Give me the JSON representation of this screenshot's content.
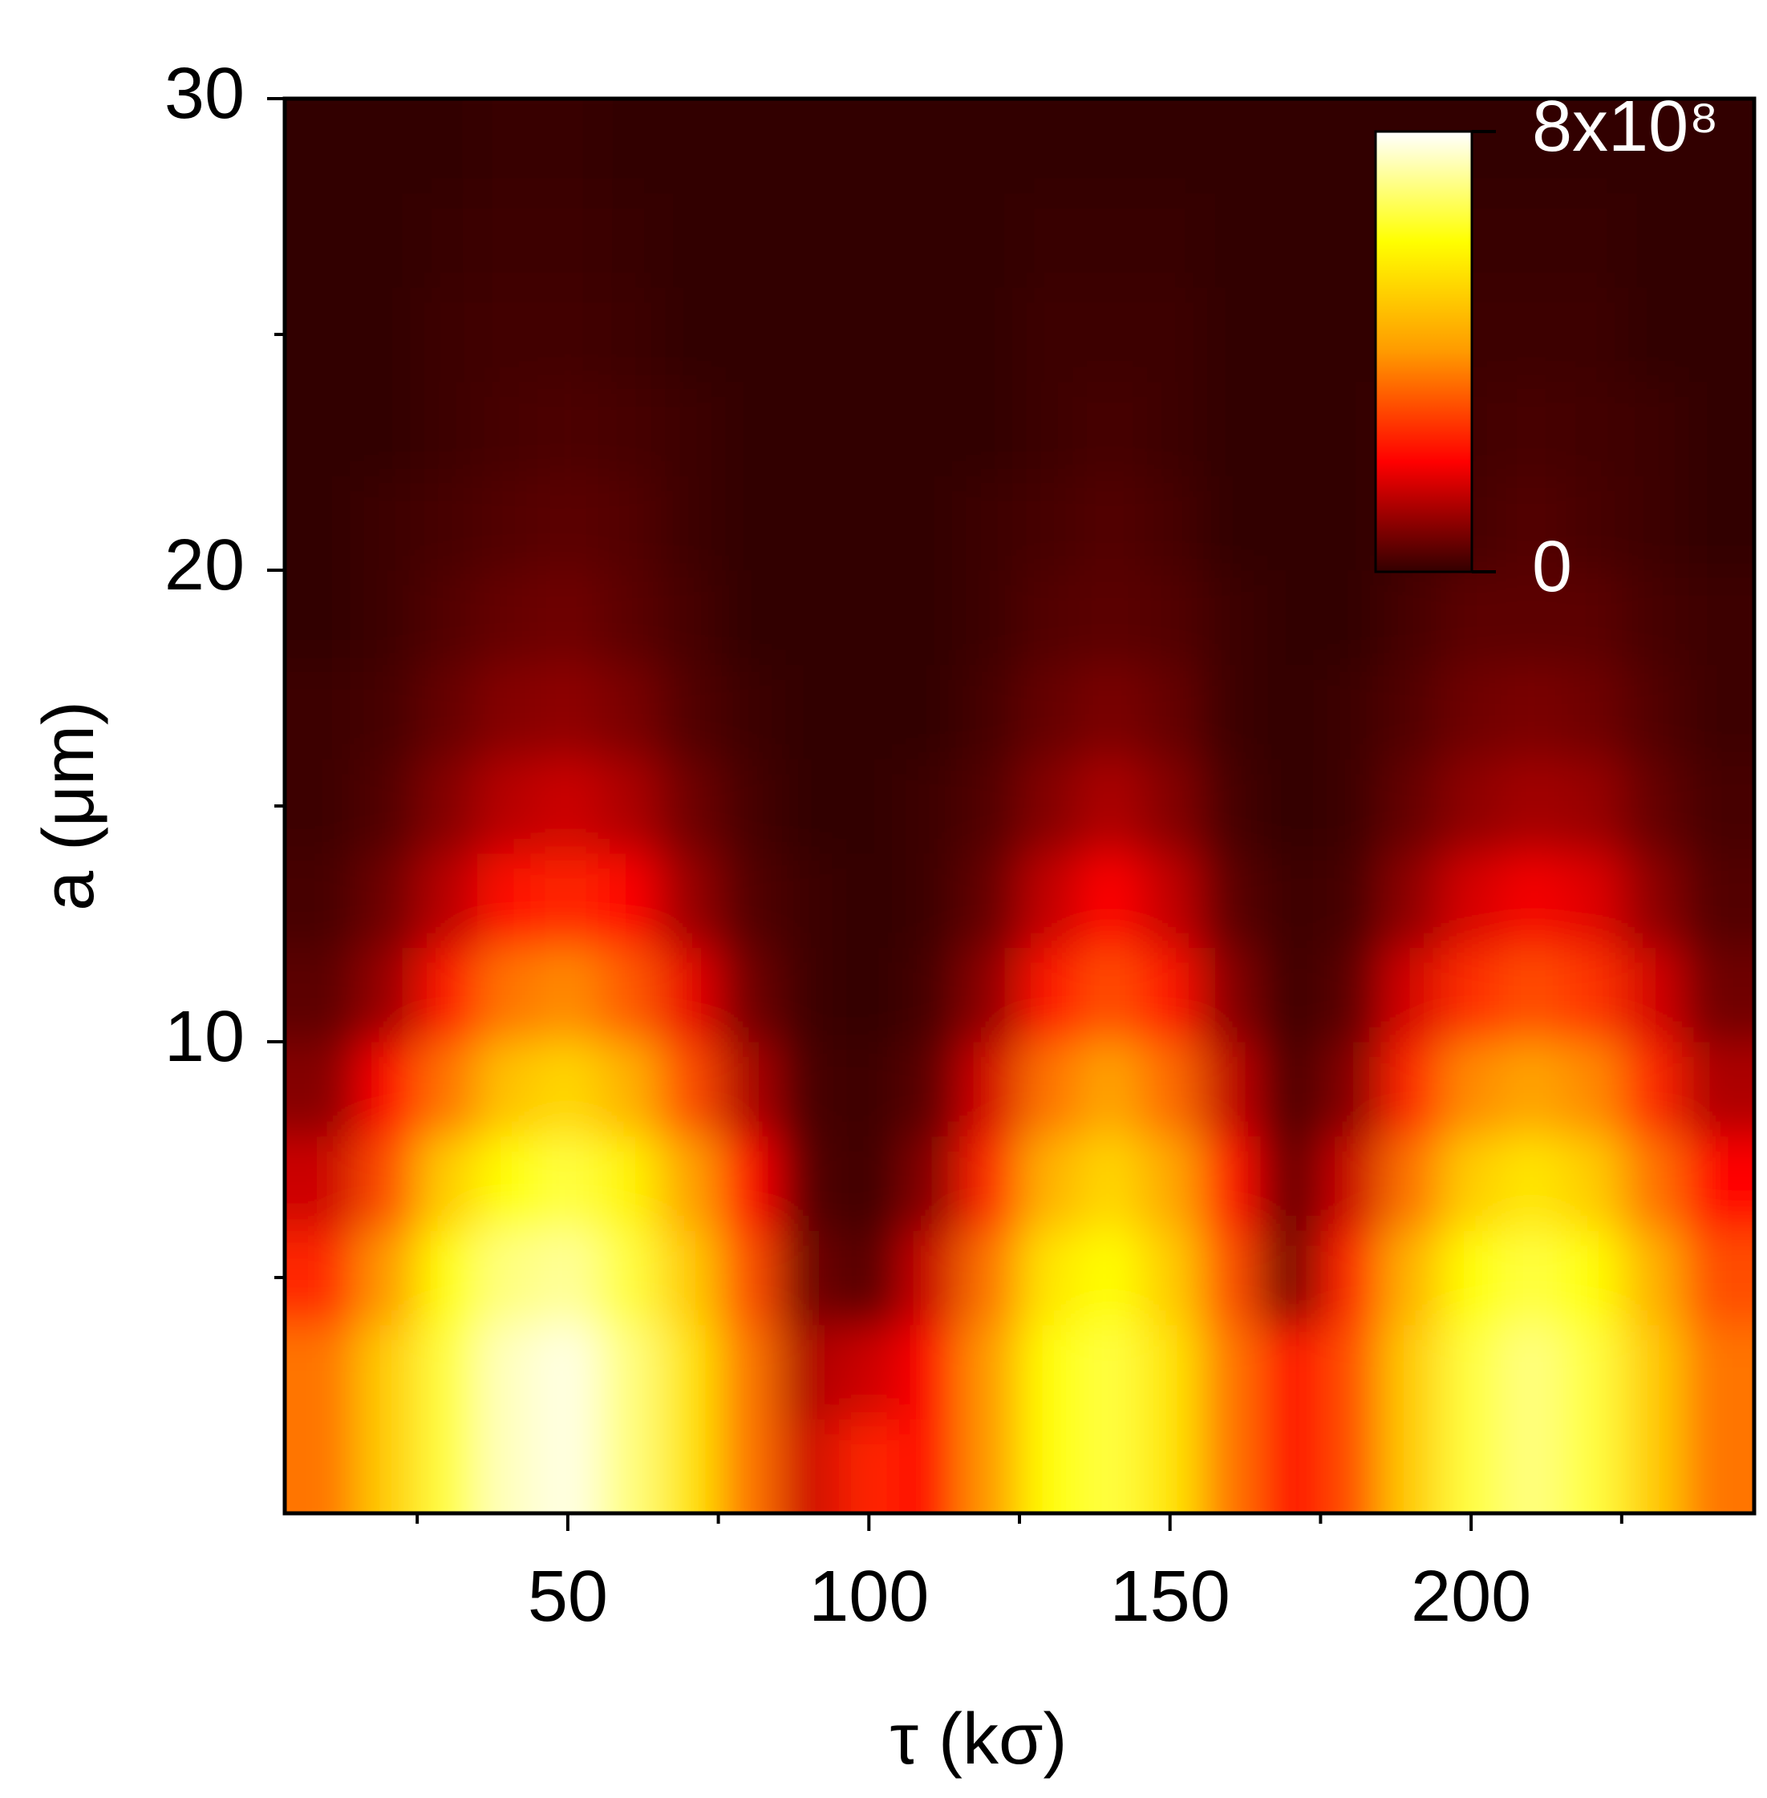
{
  "chart_data": {
    "type": "heatmap",
    "x_label": "τ (kσ)",
    "y_label": "a (μm)",
    "x": [
      10,
      20,
      30,
      40,
      50,
      60,
      70,
      80,
      90,
      100,
      110,
      120,
      130,
      140,
      150,
      160,
      170,
      180,
      190,
      200,
      210,
      220,
      230,
      240
    ],
    "y": [
      1,
      3,
      5,
      7,
      9,
      11,
      13,
      15,
      17,
      19,
      21,
      23,
      25,
      27,
      29
    ],
    "z": [
      [
        350000000.0,
        500000000.0,
        650000000.0,
        750000000.0,
        780000000.0,
        700000000.0,
        550000000.0,
        350000000.0,
        150000000.0,
        250000000.0,
        200000000.0,
        400000000.0,
        600000000.0,
        650000000.0,
        550000000.0,
        350000000.0,
        200000000.0,
        300000000.0,
        500000000.0,
        650000000.0,
        700000000.0,
        650000000.0,
        500000000.0,
        350000000.0
      ],
      [
        350000000.0,
        500000000.0,
        650000000.0,
        750000000.0,
        780000000.0,
        700000000.0,
        550000000.0,
        350000000.0,
        120000000.0,
        150000000.0,
        200000000.0,
        400000000.0,
        600000000.0,
        650000000.0,
        550000000.0,
        350000000.0,
        200000000.0,
        300000000.0,
        500000000.0,
        650000000.0,
        700000000.0,
        650000000.0,
        500000000.0,
        350000000.0
      ],
      [
        250000000.0,
        400000000.0,
        600000000.0,
        700000000.0,
        720000000.0,
        650000000.0,
        500000000.0,
        300000000.0,
        60000000.0,
        30000000.0,
        150000000.0,
        350000000.0,
        550000000.0,
        600000000.0,
        500000000.0,
        300000000.0,
        60000000.0,
        250000000.0,
        450000000.0,
        600000000.0,
        650000000.0,
        600000000.0,
        450000000.0,
        300000000.0
      ],
      [
        150000000.0,
        300000000.0,
        500000000.0,
        600000000.0,
        650000000.0,
        580000000.0,
        420000000.0,
        200000000.0,
        30000000.0,
        10000000.0,
        80000000.0,
        250000000.0,
        450000000.0,
        520000000.0,
        430000000.0,
        220000000.0,
        40000000.0,
        150000000.0,
        350000000.0,
        500000000.0,
        550000000.0,
        500000000.0,
        350000000.0,
        200000000.0
      ],
      [
        80000000.0,
        200000000.0,
        350000000.0,
        480000000.0,
        520000000.0,
        450000000.0,
        300000000.0,
        120000000.0,
        20000000.0,
        10000000.0,
        40000000.0,
        160000000.0,
        350000000.0,
        420000000.0,
        340000000.0,
        140000000.0,
        20000000.0,
        80000000.0,
        250000000.0,
        380000000.0,
        420000000.0,
        380000000.0,
        250000000.0,
        120000000.0
      ],
      [
        40000000.0,
        100000000.0,
        230000000.0,
        350000000.0,
        380000000.0,
        320000000.0,
        180000000.0,
        60000000.0,
        10000000.0,
        0,
        20000000.0,
        90000000.0,
        230000000.0,
        300000000.0,
        230000000.0,
        80000000.0,
        10000000.0,
        40000000.0,
        160000000.0,
        260000000.0,
        300000000.0,
        270000000.0,
        160000000.0,
        60000000.0
      ],
      [
        20000000.0,
        60000000.0,
        130000000.0,
        220000000.0,
        250000000.0,
        200000000.0,
        100000000.0,
        30000000.0,
        10000000.0,
        0,
        10000000.0,
        50000000.0,
        140000000.0,
        200000000.0,
        140000000.0,
        40000000.0,
        10000000.0,
        20000000.0,
        90000000.0,
        160000000.0,
        190000000.0,
        170000000.0,
        90000000.0,
        30000000.0
      ],
      [
        10000000.0,
        30000000.0,
        80000000.0,
        130000000.0,
        150000000.0,
        120000000.0,
        60000000.0,
        20000000.0,
        0,
        0,
        10000000.0,
        30000000.0,
        80000000.0,
        120000000.0,
        80000000.0,
        20000000.0,
        0,
        10000000.0,
        50000000.0,
        90000000.0,
        110000000.0,
        100000000.0,
        50000000.0,
        20000000.0
      ],
      [
        10000000.0,
        20000000.0,
        50000000.0,
        80000000.0,
        90000000.0,
        70000000.0,
        30000000.0,
        10000000.0,
        0,
        0,
        0,
        20000000.0,
        50000000.0,
        70000000.0,
        50000000.0,
        10000000.0,
        0,
        10000000.0,
        30000000.0,
        60000000.0,
        70000000.0,
        60000000.0,
        30000000.0,
        10000000.0
      ],
      [
        0,
        10000000.0,
        30000000.0,
        50000000.0,
        60000000.0,
        40000000.0,
        20000000.0,
        0,
        0,
        0,
        0,
        10000000.0,
        30000000.0,
        40000000.0,
        30000000.0,
        10000000.0,
        0,
        0,
        20000000.0,
        40000000.0,
        40000000.0,
        40000000.0,
        20000000.0,
        10000000.0
      ],
      [
        0,
        10000000.0,
        20000000.0,
        30000000.0,
        40000000.0,
        30000000.0,
        10000000.0,
        0,
        0,
        0,
        0,
        10000000.0,
        20000000.0,
        30000000.0,
        20000000.0,
        0,
        0,
        0,
        10000000.0,
        20000000.0,
        30000000.0,
        20000000.0,
        10000000.0,
        0
      ],
      [
        0,
        0,
        10000000.0,
        20000000.0,
        25000000.0,
        20000000.0,
        10000000.0,
        0,
        0,
        0,
        0,
        0,
        10000000.0,
        20000000.0,
        10000000.0,
        0,
        0,
        0,
        10000000.0,
        15000000.0,
        20000000.0,
        15000000.0,
        10000000.0,
        0
      ],
      [
        0,
        0,
        10000000.0,
        15000000.0,
        15000000.0,
        10000000.0,
        0,
        0,
        0,
        0,
        0,
        0,
        10000000.0,
        10000000.0,
        10000000.0,
        0,
        0,
        0,
        0,
        10000000.0,
        10000000.0,
        10000000.0,
        0,
        0
      ],
      [
        0,
        0,
        5000000.0,
        10000000.0,
        10000000.0,
        5000000.0,
        0,
        0,
        0,
        0,
        0,
        0,
        5000000.0,
        5000000.0,
        5000000.0,
        0,
        0,
        0,
        0,
        5000000.0,
        5000000.0,
        5000000.0,
        0,
        0
      ],
      [
        0,
        0,
        0,
        5000000.0,
        5000000.0,
        0,
        0,
        0,
        0,
        0,
        0,
        0,
        0,
        0,
        0,
        0,
        0,
        0,
        0,
        0,
        0,
        0,
        0,
        0
      ]
    ],
    "xlim": [
      3,
      247
    ],
    "ylim": [
      0,
      30
    ],
    "xticks": [
      50,
      100,
      150,
      200
    ],
    "xminor": [
      25,
      75,
      125,
      175,
      225
    ],
    "yticks": [
      10,
      20,
      30
    ],
    "yminor": [
      5,
      15,
      25
    ],
    "zlim": [
      0,
      800000000
    ],
    "zticks": [
      0,
      {
        "value": 800000000,
        "label": "8x10⁸"
      }
    ],
    "colorscale": [
      "#330000",
      "#ff0000",
      "#ff9a00",
      "#ffff00",
      "#ffffff"
    ]
  }
}
